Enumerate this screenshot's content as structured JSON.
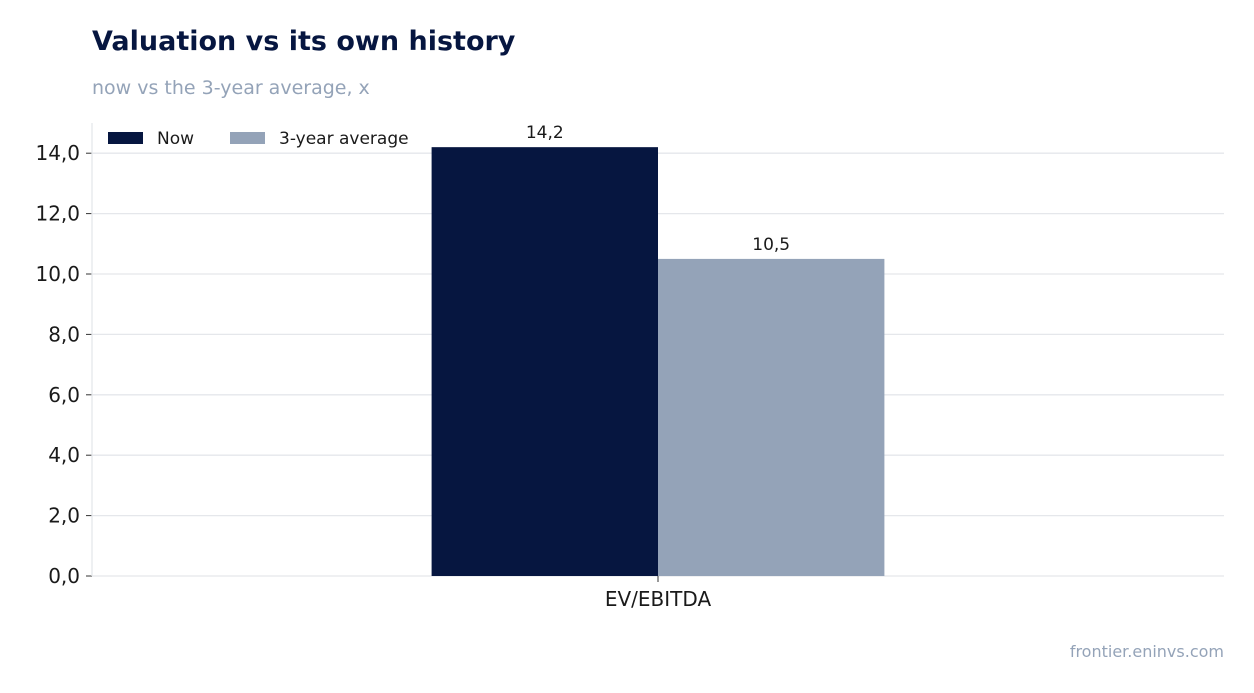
{
  "title": "Valuation vs its own history",
  "subtitle": "now vs the 3-year average, x",
  "source": "frontier.eninvs.com",
  "colors": {
    "now": "#061640",
    "average": "#94a3b8",
    "grid": "#e5e7eb",
    "text": "#1a1a1a"
  },
  "chart_data": {
    "type": "bar",
    "categories": [
      "EV/EBITDA"
    ],
    "series": [
      {
        "name": "Now",
        "values": [
          14.2
        ],
        "labels": [
          "14,2"
        ],
        "color": "#061640"
      },
      {
        "name": "3-year average",
        "values": [
          10.5
        ],
        "labels": [
          "10,5"
        ],
        "color": "#94a3b8"
      }
    ],
    "ylim": [
      0,
      15
    ],
    "yticks": [
      0,
      2,
      4,
      6,
      8,
      10,
      12,
      14
    ],
    "ytick_labels": [
      "0,0",
      "2,0",
      "4,0",
      "6,0",
      "8,0",
      "10,0",
      "12,0",
      "14,0"
    ],
    "grid": true,
    "legend": "top-left"
  }
}
